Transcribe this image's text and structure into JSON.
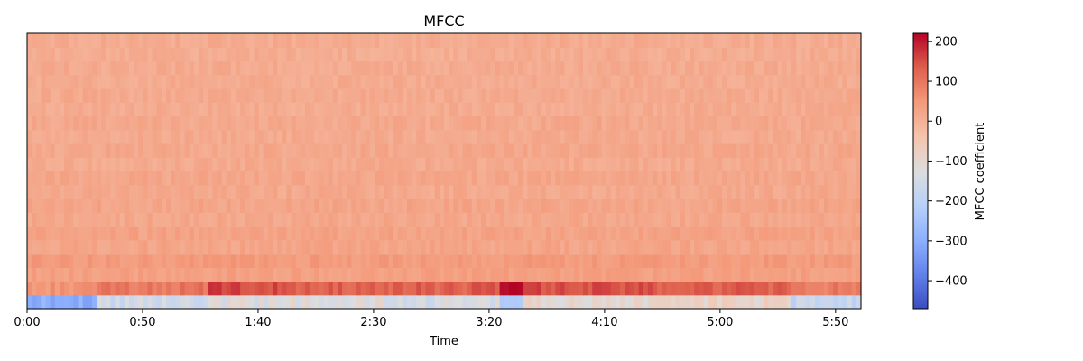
{
  "chart_data": {
    "type": "heatmap",
    "title": "MFCC",
    "xlabel": "Time",
    "x_unit": "seconds",
    "xlim": [
      0,
      361
    ],
    "x_ticks": [
      {
        "value": 0,
        "label": "0:00"
      },
      {
        "value": 50,
        "label": "0:50"
      },
      {
        "value": 100,
        "label": "1:40"
      },
      {
        "value": 150,
        "label": "2:30"
      },
      {
        "value": 200,
        "label": "3:20"
      },
      {
        "value": 250,
        "label": "4:10"
      },
      {
        "value": 300,
        "label": "5:00"
      },
      {
        "value": 350,
        "label": "5:50"
      }
    ],
    "n_coefficients": 20,
    "colormap": "coolwarm",
    "colorbar": {
      "label": "MFCC coefficient",
      "range": [
        -470,
        220
      ],
      "ticks": [
        {
          "value": 200,
          "label": "200"
        },
        {
          "value": 100,
          "label": "100"
        },
        {
          "value": 0,
          "label": "0"
        },
        {
          "value": -100,
          "label": "−100"
        },
        {
          "value": -200,
          "label": "−200"
        },
        {
          "value": -300,
          "label": "−300"
        },
        {
          "value": -400,
          "label": "−400"
        }
      ]
    },
    "coefficient_levels": [
      -200,
      140,
      35,
      45,
      25,
      30,
      20,
      25,
      18,
      22,
      15,
      20,
      15,
      18,
      12,
      15,
      12,
      14,
      10,
      12
    ],
    "segments": [
      {
        "start": 0,
        "end": 30,
        "c0": -300,
        "c1": 60
      },
      {
        "start": 30,
        "end": 78,
        "c0": -160,
        "c1": 100
      },
      {
        "start": 78,
        "end": 108,
        "c0": -130,
        "c1": 160
      },
      {
        "start": 108,
        "end": 155,
        "c0": -120,
        "c1": 130
      },
      {
        "start": 155,
        "end": 204,
        "c0": -140,
        "c1": 130
      },
      {
        "start": 204,
        "end": 215,
        "c0": -230,
        "c1": 215
      },
      {
        "start": 215,
        "end": 272,
        "c0": -100,
        "c1": 150
      },
      {
        "start": 272,
        "end": 330,
        "c0": -80,
        "c1": 130
      },
      {
        "start": 330,
        "end": 361,
        "c0": -180,
        "c1": 90
      }
    ]
  }
}
